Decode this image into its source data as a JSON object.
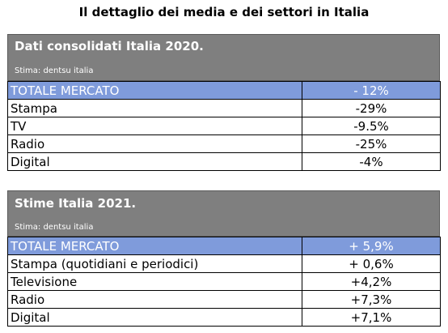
{
  "page_title": "Il dettaglio dei media e dei settori in Italia",
  "tables": [
    {
      "title": "Dati consolidati Italia 2020.",
      "source": "Stima: dentsu italia",
      "rows": [
        {
          "label": "TOTALE MERCATO",
          "value": "- 12%"
        },
        {
          "label": "Stampa",
          "value": "-29%"
        },
        {
          "label": "TV",
          "value": "-9.5%"
        },
        {
          "label": "Radio",
          "value": "-25%"
        },
        {
          "label": "Digital",
          "value": "-4%"
        }
      ]
    },
    {
      "title": "Stime Italia 2021.",
      "source": "Stima: dentsu italia",
      "rows": [
        {
          "label": "TOTALE MERCATO",
          "value": "+ 5,9%"
        },
        {
          "label": "Stampa (quotidiani e periodici)",
          "value": "+ 0,6%"
        },
        {
          "label": "Televisione",
          "value": "+4,2%"
        },
        {
          "label": "Radio",
          "value": "+7,3%"
        },
        {
          "label": "Digital",
          "value": "+7,1%"
        }
      ]
    }
  ],
  "colors": {
    "header_bg": "#7f7f7f",
    "total_row_bg": "#7f9bdb"
  }
}
